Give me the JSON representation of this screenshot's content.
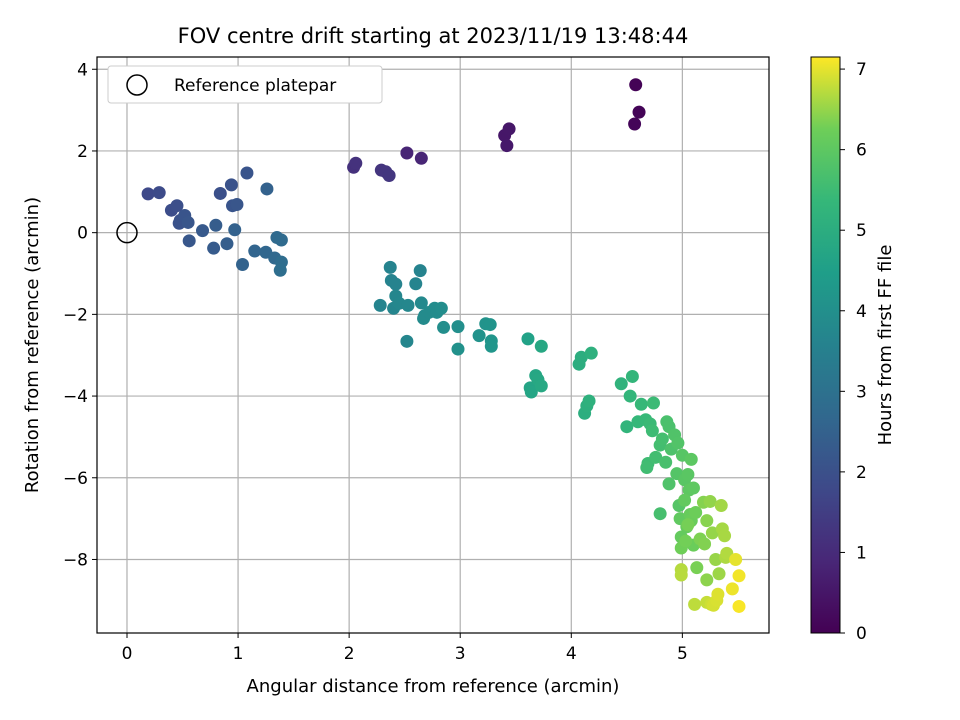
{
  "chart_data": {
    "type": "scatter",
    "title": "FOV centre drift starting at 2023/11/19 13:48:44",
    "xlabel": "Angular distance from reference (arcmin)",
    "ylabel": "Rotation from reference (arcmin)",
    "xlim": [
      -0.27,
      5.78
    ],
    "ylim": [
      -9.8,
      4.3
    ],
    "xticks": [
      0,
      1,
      2,
      3,
      4,
      5
    ],
    "yticks": [
      4,
      2,
      0,
      -2,
      -4,
      -6,
      -8
    ],
    "grid": true,
    "legend": {
      "placement": "top-left",
      "entries": [
        "Reference platepar"
      ]
    },
    "reference_point": {
      "x": 0,
      "y": 0
    },
    "colorbar": {
      "label": "Hours from first FF file",
      "range": [
        0,
        7.15
      ],
      "ticks": [
        0,
        1,
        2,
        3,
        4,
        5,
        6,
        7
      ],
      "colormap": "viridis"
    },
    "points": [
      [
        4.58,
        3.62,
        0.05
      ],
      [
        4.61,
        2.95,
        0.08
      ],
      [
        4.57,
        2.66,
        0.1
      ],
      [
        3.4,
        2.38,
        0.5
      ],
      [
        3.44,
        2.54,
        0.52
      ],
      [
        3.42,
        2.13,
        0.55
      ],
      [
        2.52,
        1.95,
        0.85
      ],
      [
        2.65,
        1.82,
        0.88
      ],
      [
        2.04,
        1.6,
        1.15
      ],
      [
        2.06,
        1.7,
        1.18
      ],
      [
        2.29,
        1.53,
        1.25
      ],
      [
        2.33,
        1.49,
        1.28
      ],
      [
        2.36,
        1.4,
        1.3
      ],
      [
        0.19,
        0.95,
        1.8
      ],
      [
        0.29,
        0.98,
        1.85
      ],
      [
        0.4,
        0.55,
        1.9
      ],
      [
        0.45,
        0.66,
        1.95
      ],
      [
        0.48,
        0.3,
        2.0
      ],
      [
        0.47,
        0.23,
        2.05
      ],
      [
        0.52,
        0.42,
        2.1
      ],
      [
        0.55,
        0.25,
        2.15
      ],
      [
        0.56,
        -0.2,
        2.2
      ],
      [
        0.68,
        0.05,
        2.25
      ],
      [
        0.78,
        -0.38,
        2.3
      ],
      [
        0.8,
        0.18,
        2.35
      ],
      [
        0.84,
        0.96,
        2.0
      ],
      [
        0.94,
        1.17,
        2.05
      ],
      [
        0.95,
        0.66,
        2.1
      ],
      [
        0.99,
        0.69,
        2.15
      ],
      [
        1.08,
        1.46,
        2.1
      ],
      [
        0.9,
        -0.27,
        2.4
      ],
      [
        0.97,
        0.07,
        2.5
      ],
      [
        1.04,
        -0.78,
        2.55
      ],
      [
        1.15,
        -0.45,
        2.6
      ],
      [
        1.25,
        -0.48,
        2.65
      ],
      [
        1.26,
        1.07,
        2.5
      ],
      [
        1.33,
        -0.62,
        2.7
      ],
      [
        1.35,
        -0.12,
        2.75
      ],
      [
        1.39,
        -0.18,
        2.8
      ],
      [
        1.39,
        -0.72,
        2.85
      ],
      [
        1.38,
        -0.92,
        2.9
      ],
      [
        2.37,
        -0.85,
        3.6
      ],
      [
        2.38,
        -1.17,
        3.6
      ],
      [
        2.42,
        -1.26,
        3.62
      ],
      [
        2.28,
        -1.78,
        3.65
      ],
      [
        2.4,
        -1.85,
        3.68
      ],
      [
        2.42,
        -1.55,
        3.7
      ],
      [
        2.45,
        -1.73,
        3.72
      ],
      [
        2.53,
        -1.78,
        3.75
      ],
      [
        2.52,
        -2.66,
        3.7
      ],
      [
        2.6,
        -1.25,
        3.65
      ],
      [
        2.64,
        -0.93,
        3.6
      ],
      [
        2.65,
        -1.72,
        3.8
      ],
      [
        2.68,
        -2.03,
        3.82
      ],
      [
        2.67,
        -2.1,
        3.85
      ],
      [
        2.72,
        -1.95,
        3.87
      ],
      [
        2.77,
        -1.85,
        3.9
      ],
      [
        2.79,
        -1.95,
        3.9
      ],
      [
        2.83,
        -1.85,
        3.92
      ],
      [
        2.85,
        -2.32,
        3.95
      ],
      [
        2.98,
        -2.3,
        4.0
      ],
      [
        2.98,
        -2.85,
        4.05
      ],
      [
        3.17,
        -2.52,
        4.1
      ],
      [
        3.23,
        -2.23,
        4.12
      ],
      [
        3.27,
        -2.25,
        4.15
      ],
      [
        3.28,
        -2.65,
        4.18
      ],
      [
        3.28,
        -2.78,
        4.2
      ],
      [
        3.61,
        -2.6,
        4.6
      ],
      [
        3.63,
        -3.8,
        4.7
      ],
      [
        3.64,
        -3.9,
        4.72
      ],
      [
        3.68,
        -3.5,
        4.75
      ],
      [
        3.7,
        -3.6,
        4.78
      ],
      [
        3.73,
        -2.78,
        4.8
      ],
      [
        3.73,
        -3.75,
        4.82
      ],
      [
        4.07,
        -3.22,
        5.0
      ],
      [
        4.09,
        -3.05,
        5.02
      ],
      [
        4.12,
        -4.42,
        5.05
      ],
      [
        4.14,
        -4.24,
        5.08
      ],
      [
        4.18,
        -2.95,
        5.1
      ],
      [
        4.16,
        -4.12,
        5.12
      ],
      [
        4.45,
        -3.7,
        5.2
      ],
      [
        4.5,
        -4.75,
        5.25
      ],
      [
        4.53,
        -4.0,
        5.28
      ],
      [
        4.55,
        -3.52,
        5.3
      ],
      [
        4.6,
        -4.63,
        5.35
      ],
      [
        4.63,
        -4.2,
        5.38
      ],
      [
        4.67,
        -4.58,
        5.4
      ],
      [
        4.71,
        -4.68,
        5.45
      ],
      [
        4.74,
        -4.17,
        5.48
      ],
      [
        4.73,
        -4.85,
        5.5
      ],
      [
        4.69,
        -5.65,
        5.52
      ],
      [
        4.68,
        -5.75,
        5.55
      ],
      [
        4.76,
        -5.5,
        5.58
      ],
      [
        4.8,
        -5.2,
        5.6
      ],
      [
        4.82,
        -5.05,
        5.62
      ],
      [
        4.8,
        -6.88,
        5.65
      ],
      [
        4.85,
        -5.62,
        5.68
      ],
      [
        4.86,
        -4.63,
        5.7
      ],
      [
        4.88,
        -4.75,
        5.72
      ],
      [
        4.9,
        -5.3,
        5.75
      ],
      [
        4.88,
        -6.15,
        5.78
      ],
      [
        4.93,
        -4.95,
        5.8
      ],
      [
        4.96,
        -5.15,
        5.82
      ],
      [
        4.95,
        -5.9,
        5.85
      ],
      [
        4.97,
        -6.68,
        5.88
      ],
      [
        5.0,
        -5.45,
        5.9
      ],
      [
        5.02,
        -6.05,
        5.92
      ],
      [
        5.05,
        -5.92,
        5.95
      ],
      [
        5.08,
        -5.55,
        5.98
      ],
      [
        5.06,
        -6.3,
        6.0
      ],
      [
        5.1,
        -6.25,
        6.02
      ],
      [
        4.98,
        -7.0,
        6.05
      ],
      [
        5.02,
        -6.55,
        6.08
      ],
      [
        4.99,
        -7.45,
        6.1
      ],
      [
        5.04,
        -7.2,
        6.12
      ],
      [
        5.07,
        -6.9,
        6.15
      ],
      [
        5.08,
        -7.05,
        6.18
      ],
      [
        5.1,
        -7.65,
        6.2
      ],
      [
        5.12,
        -6.85,
        6.22
      ],
      [
        4.99,
        -7.72,
        6.25
      ],
      [
        5.03,
        -7.55,
        6.28
      ],
      [
        5.05,
        -7.15,
        6.3
      ],
      [
        5.13,
        -8.2,
        6.32
      ],
      [
        5.16,
        -7.5,
        6.35
      ],
      [
        5.2,
        -7.62,
        6.38
      ],
      [
        5.19,
        -6.6,
        6.4
      ],
      [
        5.22,
        -7.05,
        6.42
      ],
      [
        5.22,
        -8.5,
        6.45
      ],
      [
        5.25,
        -6.58,
        6.48
      ],
      [
        5.27,
        -7.35,
        6.5
      ],
      [
        5.3,
        -8.0,
        6.52
      ],
      [
        5.33,
        -8.35,
        6.55
      ],
      [
        5.35,
        -6.68,
        6.58
      ],
      [
        5.36,
        -7.25,
        6.6
      ],
      [
        5.38,
        -7.42,
        6.62
      ],
      [
        5.39,
        -7.95,
        6.65
      ],
      [
        5.4,
        -7.85,
        6.68
      ],
      [
        4.99,
        -8.25,
        6.7
      ],
      [
        4.99,
        -8.38,
        6.72
      ],
      [
        5.11,
        -9.1,
        6.75
      ],
      [
        5.22,
        -9.05,
        6.8
      ],
      [
        5.26,
        -9.1,
        6.85
      ],
      [
        5.28,
        -9.12,
        6.9
      ],
      [
        5.31,
        -9.0,
        6.92
      ],
      [
        5.32,
        -8.85,
        6.95
      ],
      [
        5.48,
        -8.0,
        7.0
      ],
      [
        5.45,
        -8.72,
        7.05
      ],
      [
        5.51,
        -8.4,
        7.08
      ],
      [
        5.51,
        -9.15,
        7.12
      ]
    ]
  }
}
